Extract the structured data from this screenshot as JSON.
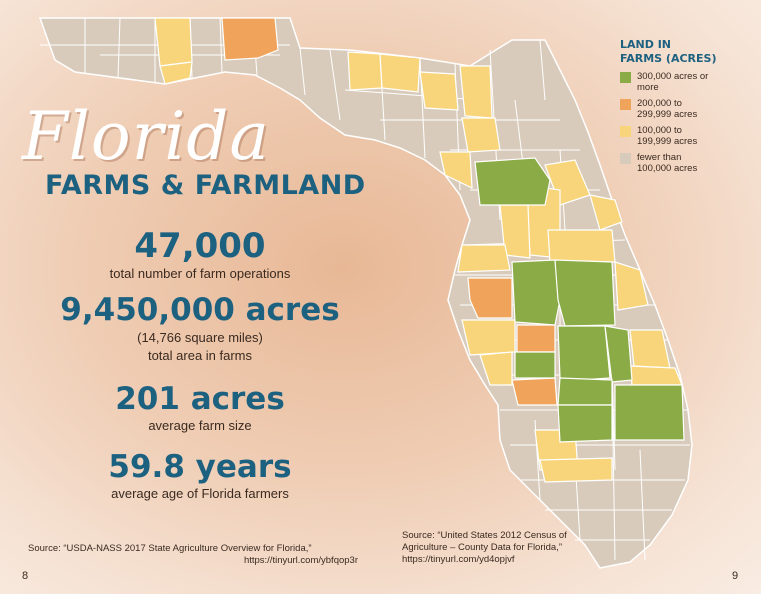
{
  "title": {
    "script": "Florida",
    "subtitle": "FARMS & FARMLAND"
  },
  "stats": [
    {
      "value": "47,000",
      "label": "total number of farm operations"
    },
    {
      "value": "9,450,000 acres",
      "note": "(14,766 square miles)",
      "label": "total area in farms"
    },
    {
      "value": "201 acres",
      "label": "average farm size"
    },
    {
      "value": "59.8 years",
      "label": "average age of Florida farmers"
    }
  ],
  "legend": {
    "title_line1": "LAND IN",
    "title_line2": "FARMS (ACRES)",
    "items": [
      {
        "line1": "300,000 acres or",
        "line2": "more",
        "color": "#8aab45"
      },
      {
        "line1": "200,000 to",
        "line2": "299,999 acres",
        "color": "#f0a35a"
      },
      {
        "line1": "100,000 to",
        "line2": "199,999 acres",
        "color": "#f8d57a"
      },
      {
        "line1": "fewer than",
        "line2": "100,000 acres",
        "color": "#d9cbbb"
      }
    ]
  },
  "sources": {
    "left": {
      "line1": "Source: “USDA-NASS 2017 State Agriculture Overview for Florida,”",
      "line2": "https://tinyurl.com/ybfqop3r"
    },
    "right": {
      "line1": "Source: “United States 2012 Census of",
      "line2": "Agriculture – County Data for Florida,”",
      "line3": "https://tinyurl.com/yd4opjvf"
    }
  },
  "page_numbers": {
    "left": "8",
    "right": "9"
  },
  "map": {
    "colors": {
      "green": "#8aab45",
      "orange": "#f0a35a",
      "yellow": "#f8d57a",
      "gray": "#d9cbbb",
      "border": "#ffffff"
    }
  }
}
